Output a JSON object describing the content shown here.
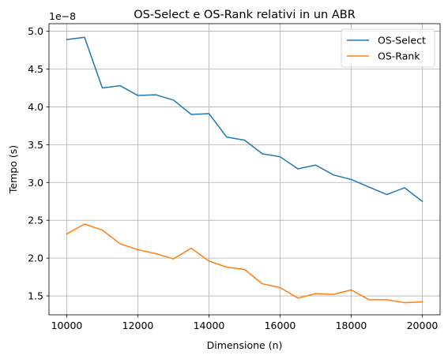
{
  "chart_data": {
    "type": "line",
    "title": "OS-Select e OS-Rank relativi in un ABR",
    "xlabel": "Dimensione (n)",
    "ylabel": "Tempo (s)",
    "y_offset_label": "1e−8",
    "xlim": [
      9500,
      20500
    ],
    "ylim": [
      1.25,
      5.1
    ],
    "x_ticks": [
      10000,
      12000,
      14000,
      16000,
      18000,
      20000
    ],
    "x_tick_labels": [
      "10000",
      "12000",
      "14000",
      "16000",
      "18000",
      "20000"
    ],
    "y_ticks": [
      1.5,
      2.0,
      2.5,
      3.0,
      3.5,
      4.0,
      4.5,
      5.0
    ],
    "y_tick_labels": [
      "1.5",
      "2.0",
      "2.5",
      "3.0",
      "3.5",
      "4.0",
      "4.5",
      "5.0"
    ],
    "grid": true,
    "legend_position": "top-right",
    "x": [
      10000,
      10500,
      11000,
      11500,
      12000,
      12500,
      13000,
      13500,
      14000,
      14500,
      15000,
      15500,
      16000,
      16500,
      17000,
      17500,
      18000,
      18500,
      19000,
      19500,
      20000
    ],
    "series": [
      {
        "name": "OS-Select",
        "color": "#1f77b4",
        "values": [
          4.89,
          4.92,
          4.25,
          4.28,
          4.15,
          4.16,
          4.09,
          3.9,
          3.91,
          3.6,
          3.56,
          3.38,
          3.34,
          3.18,
          3.23,
          3.1,
          3.04,
          2.94,
          2.84,
          2.93,
          2.75
        ]
      },
      {
        "name": "OS-Rank",
        "color": "#ff7f0e",
        "values": [
          2.32,
          2.45,
          2.37,
          2.19,
          2.11,
          2.06,
          1.99,
          2.13,
          1.96,
          1.88,
          1.85,
          1.66,
          1.61,
          1.47,
          1.53,
          1.52,
          1.58,
          1.45,
          1.45,
          1.41,
          1.42
        ]
      }
    ]
  }
}
